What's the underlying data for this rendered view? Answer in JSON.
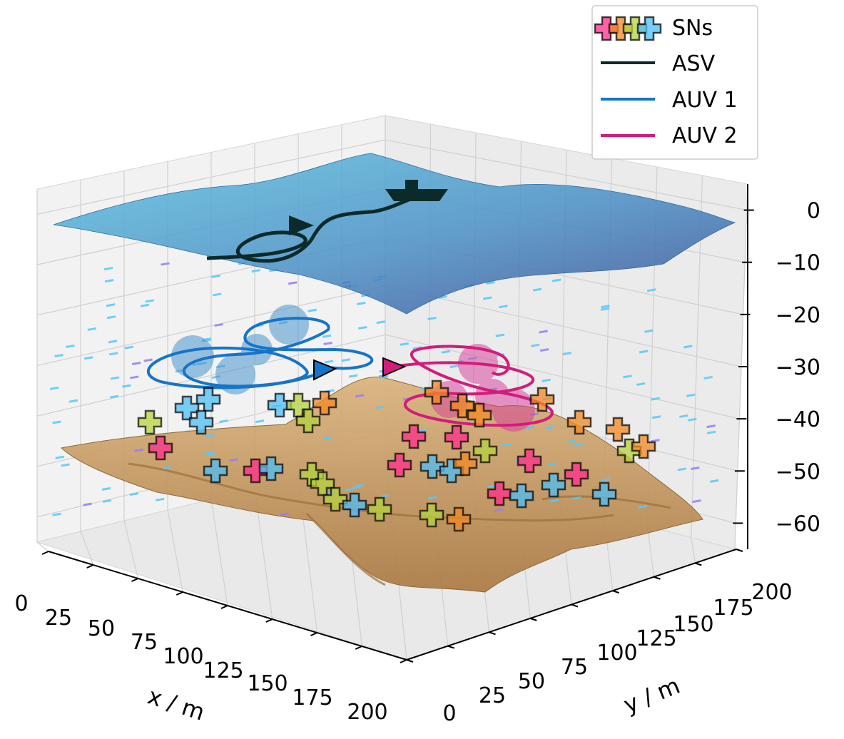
{
  "chart_data": {
    "type": "3d-scatter-line-surface",
    "title": "",
    "xlabel": "x / m",
    "ylabel": "y / m",
    "zlabel": "",
    "xlim": [
      0,
      200
    ],
    "ylim": [
      0,
      200
    ],
    "zlim": [
      -65,
      5
    ],
    "x_ticks": [
      "0",
      "25",
      "50",
      "75",
      "100",
      "125",
      "150",
      "175",
      "200"
    ],
    "y_ticks": [
      "0",
      "25",
      "50",
      "75",
      "100",
      "125",
      "150",
      "175",
      "200"
    ],
    "z_ticks": [
      "0",
      "−10",
      "−20",
      "−30",
      "−40",
      "−50",
      "−60"
    ],
    "grid": true,
    "legend_position": "top-right",
    "legend": [
      {
        "label": "SNs",
        "color": "#ff2d8a",
        "marker": "plus",
        "colors": [
          "#ff2d8a",
          "#f08a24",
          "#b5d33f",
          "#4dbdf5"
        ]
      },
      {
        "label": "ASV",
        "color": "#0b2b2b",
        "marker": "line"
      },
      {
        "label": "AUV 1",
        "color": "#1674c8",
        "marker": "line"
      },
      {
        "label": "AUV 2",
        "color": "#d21c7a",
        "marker": "line"
      }
    ],
    "colors": {
      "sea_surface": "#3f9ec4",
      "seabed": "#c9a36c",
      "currents": "#59c8f7"
    }
  }
}
